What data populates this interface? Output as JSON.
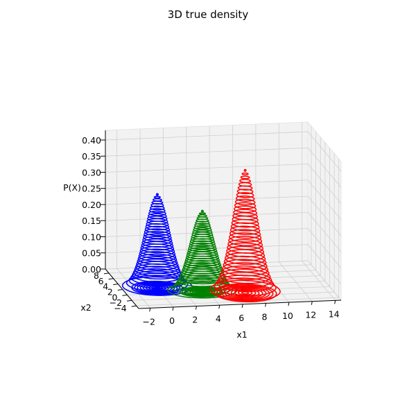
{
  "chart_data": {
    "type": "surface-contour-3d",
    "title": "3D true density",
    "xlabel": "x1",
    "ylabel": "x2",
    "zlabel": "P(X)",
    "x_ticks": [
      "−2",
      "0",
      "2",
      "4",
      "6",
      "8",
      "10",
      "12",
      "14"
    ],
    "y_ticks": [
      "−4",
      "−2",
      "0",
      "2",
      "4",
      "6",
      "8"
    ],
    "z_ticks": [
      "0.00",
      "0.05",
      "0.10",
      "0.15",
      "0.20",
      "0.25",
      "0.30",
      "0.35",
      "0.40"
    ],
    "xlim": [
      -3,
      14.5
    ],
    "ylim": [
      -5,
      9.5
    ],
    "zlim": [
      0,
      0.43
    ],
    "grid": true,
    "series": [
      {
        "color": "#0000ff",
        "mean": [
          0,
          2
        ],
        "sigma": [
          1.05,
          1.2
        ],
        "peak": 0.29,
        "base_scale": 4.5
      },
      {
        "color": "#008000",
        "mean": [
          3.5,
          0
        ],
        "sigma": [
          1.05,
          1.0
        ],
        "peak": 0.25,
        "base_scale": 4.0
      },
      {
        "color": "#ff0000",
        "mean": [
          7,
          -1
        ],
        "sigma": [
          1.05,
          1.3
        ],
        "peak": 0.38,
        "base_scale": 5.5
      }
    ]
  }
}
